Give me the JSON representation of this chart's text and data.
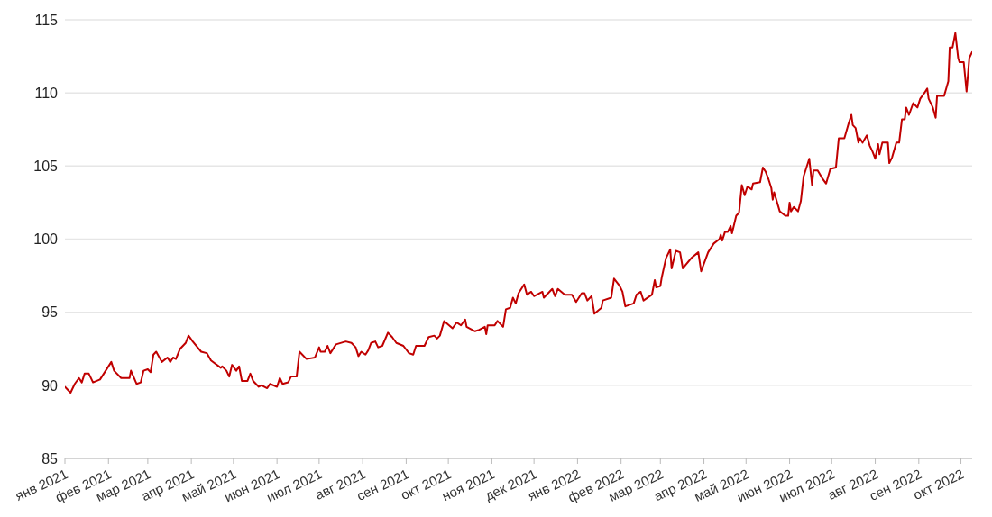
{
  "chart_data": {
    "type": "line",
    "x": [
      "2021-01-01",
      "2021-01-05",
      "2021-01-08",
      "2021-01-11",
      "2021-01-13",
      "2021-01-15",
      "2021-01-18",
      "2021-01-21",
      "2021-01-26",
      "2021-02-03",
      "2021-02-05",
      "2021-02-10",
      "2021-02-16",
      "2021-02-17",
      "2021-02-21",
      "2021-02-24",
      "2021-02-26",
      "2021-03-01",
      "2021-03-03",
      "2021-03-05",
      "2021-03-07",
      "2021-03-11",
      "2021-03-15",
      "2021-03-17",
      "2021-03-19",
      "2021-03-21",
      "2021-03-24",
      "2021-03-28",
      "2021-03-30",
      "2021-04-02",
      "2021-04-08",
      "2021-04-12",
      "2021-04-15",
      "2021-04-22",
      "2021-04-23",
      "2021-04-26",
      "2021-04-28",
      "2021-04-30",
      "2021-05-03",
      "2021-05-05",
      "2021-05-07",
      "2021-05-11",
      "2021-05-13",
      "2021-05-15",
      "2021-05-19",
      "2021-05-21",
      "2021-05-25",
      "2021-05-27",
      "2021-06-01",
      "2021-06-03",
      "2021-06-05",
      "2021-06-09",
      "2021-06-11",
      "2021-06-15",
      "2021-06-17",
      "2021-06-22",
      "2021-06-28",
      "2021-07-01",
      "2021-07-02",
      "2021-07-05",
      "2021-07-07",
      "2021-07-09",
      "2021-07-13",
      "2021-07-20",
      "2021-07-24",
      "2021-07-27",
      "2021-07-29",
      "2021-07-31",
      "2021-08-03",
      "2021-08-05",
      "2021-08-07",
      "2021-08-10",
      "2021-08-12",
      "2021-08-15",
      "2021-08-19",
      "2021-08-22",
      "2021-08-25",
      "2021-08-30",
      "2021-09-03",
      "2021-09-06",
      "2021-09-08",
      "2021-09-14",
      "2021-09-17",
      "2021-09-21",
      "2021-09-23",
      "2021-09-25",
      "2021-09-28",
      "2021-10-04",
      "2021-10-07",
      "2021-10-10",
      "2021-10-13",
      "2021-10-14",
      "2021-10-20",
      "2021-10-23",
      "2021-10-27",
      "2021-10-28",
      "2021-10-29",
      "2021-11-03",
      "2021-11-05",
      "2021-11-09",
      "2021-11-11",
      "2021-11-14",
      "2021-11-16",
      "2021-11-18",
      "2021-11-20",
      "2021-11-24",
      "2021-11-26",
      "2021-11-29",
      "2021-12-01",
      "2021-12-07",
      "2021-12-08",
      "2021-12-14",
      "2021-12-16",
      "2021-12-18",
      "2021-12-23",
      "2021-12-28",
      "2021-12-31",
      "2022-01-04",
      "2022-01-06",
      "2022-01-08",
      "2022-01-11",
      "2022-01-13",
      "2022-01-18",
      "2022-01-19",
      "2022-01-25",
      "2022-01-27",
      "2022-01-31",
      "2022-02-02",
      "2022-02-04",
      "2022-02-10",
      "2022-02-12",
      "2022-02-15",
      "2022-02-17",
      "2022-02-23",
      "2022-02-25",
      "2022-02-26",
      "2022-03-01",
      "2022-03-02",
      "2022-03-05",
      "2022-03-08",
      "2022-03-09",
      "2022-03-12",
      "2022-03-15",
      "2022-03-17",
      "2022-03-23",
      "2022-03-28",
      "2022-03-30",
      "2022-04-04",
      "2022-04-08",
      "2022-04-12",
      "2022-04-13",
      "2022-04-14",
      "2022-04-16",
      "2022-04-18",
      "2022-04-20",
      "2022-04-21",
      "2022-04-24",
      "2022-04-26",
      "2022-04-28",
      "2022-04-30",
      "2022-05-02",
      "2022-05-05",
      "2022-05-06",
      "2022-05-11",
      "2022-05-13",
      "2022-05-15",
      "2022-05-17",
      "2022-05-19",
      "2022-05-20",
      "2022-05-21",
      "2022-05-25",
      "2022-05-29",
      "2022-05-31",
      "2022-06-01",
      "2022-06-02",
      "2022-06-04",
      "2022-06-07",
      "2022-06-09",
      "2022-06-11",
      "2022-06-15",
      "2022-06-17",
      "2022-06-18",
      "2022-06-21",
      "2022-06-24",
      "2022-06-27",
      "2022-06-30",
      "2022-07-04",
      "2022-07-06",
      "2022-07-10",
      "2022-07-13",
      "2022-07-15",
      "2022-07-16",
      "2022-07-18",
      "2022-07-20",
      "2022-07-21",
      "2022-07-23",
      "2022-07-26",
      "2022-07-28",
      "2022-07-30",
      "2022-08-01",
      "2022-08-03",
      "2022-08-04",
      "2022-08-06",
      "2022-08-10",
      "2022-08-11",
      "2022-08-13",
      "2022-08-16",
      "2022-08-18",
      "2022-08-20",
      "2022-08-22",
      "2022-08-23",
      "2022-08-25",
      "2022-08-28",
      "2022-08-31",
      "2022-09-02",
      "2022-09-05",
      "2022-09-07",
      "2022-09-08",
      "2022-09-11",
      "2022-09-13",
      "2022-09-14",
      "2022-09-19",
      "2022-09-22",
      "2022-09-23",
      "2022-09-25",
      "2022-09-27",
      "2022-09-29",
      "2022-09-30",
      "2022-10-03",
      "2022-10-05",
      "2022-10-07",
      "2022-10-09"
    ],
    "series": [
      {
        "color": "#c00000",
        "values": [
          89.9,
          89.5,
          90.1,
          90.5,
          90.2,
          90.8,
          90.8,
          90.2,
          90.4,
          91.6,
          91.0,
          90.5,
          90.5,
          91.0,
          90.1,
          90.2,
          91.0,
          91.1,
          90.9,
          92.1,
          92.3,
          91.6,
          91.9,
          91.6,
          91.9,
          91.8,
          92.5,
          92.9,
          93.4,
          93.0,
          92.3,
          92.2,
          91.7,
          91.2,
          91.3,
          91.0,
          90.6,
          91.4,
          91.0,
          91.3,
          90.3,
          90.3,
          90.8,
          90.3,
          89.9,
          90.0,
          89.8,
          90.1,
          89.9,
          90.5,
          90.1,
          90.2,
          90.6,
          90.6,
          92.3,
          91.8,
          91.9,
          92.6,
          92.3,
          92.3,
          92.7,
          92.2,
          92.8,
          93.0,
          92.9,
          92.6,
          92.0,
          92.3,
          92.1,
          92.4,
          92.9,
          93.0,
          92.6,
          92.7,
          93.6,
          93.3,
          92.9,
          92.7,
          92.2,
          92.1,
          92.7,
          92.7,
          93.3,
          93.4,
          93.2,
          93.4,
          94.4,
          93.9,
          94.3,
          94.1,
          94.5,
          94.0,
          93.7,
          93.8,
          94.0,
          93.5,
          94.1,
          94.1,
          94.4,
          94.0,
          95.2,
          95.3,
          96.0,
          95.6,
          96.3,
          96.9,
          96.2,
          96.4,
          96.1,
          96.4,
          96.0,
          96.6,
          96.1,
          96.6,
          96.2,
          96.2,
          95.7,
          96.3,
          96.3,
          95.8,
          96.1,
          94.9,
          95.3,
          95.8,
          96.0,
          97.3,
          96.8,
          96.4,
          95.4,
          95.6,
          96.2,
          96.4,
          95.8,
          96.2,
          97.2,
          96.7,
          96.8,
          97.4,
          98.7,
          99.3,
          98.0,
          99.2,
          99.1,
          98.0,
          98.7,
          99.1,
          97.8,
          99.1,
          99.7,
          100.0,
          100.3,
          99.9,
          100.5,
          100.5,
          100.9,
          100.4,
          101.6,
          101.8,
          103.7,
          103.0,
          103.6,
          103.4,
          103.8,
          103.9,
          104.9,
          104.6,
          104.1,
          103.5,
          102.7,
          103.2,
          101.9,
          101.6,
          101.6,
          102.5,
          101.9,
          102.2,
          101.9,
          102.6,
          104.3,
          105.5,
          103.7,
          104.7,
          104.7,
          104.2,
          103.8,
          104.8,
          104.9,
          106.9,
          106.9,
          107.9,
          108.5,
          107.8,
          107.6,
          106.6,
          106.9,
          106.6,
          107.1,
          106.4,
          106.0,
          105.5,
          106.5,
          105.8,
          106.6,
          106.6,
          105.2,
          105.6,
          106.6,
          106.6,
          108.2,
          108.2,
          109.0,
          108.5,
          109.3,
          109.0,
          109.6,
          110.0,
          110.3,
          109.6,
          109.0,
          108.3,
          109.8,
          109.8,
          110.8,
          113.1,
          113.1,
          114.1,
          112.4,
          112.1,
          112.1,
          110.1,
          112.4,
          112.8
        ]
      }
    ],
    "xlim": [
      "2021-01-01",
      "2022-10-09"
    ],
    "xticks": [
      {
        "value": "2021-01-01",
        "label": "янв 2021"
      },
      {
        "value": "2021-02-01",
        "label": "фев 2021"
      },
      {
        "value": "2021-03-01",
        "label": "мар 2021"
      },
      {
        "value": "2021-04-01",
        "label": "апр 2021"
      },
      {
        "value": "2021-05-01",
        "label": "май 2021"
      },
      {
        "value": "2021-06-01",
        "label": "июн 2021"
      },
      {
        "value": "2021-07-01",
        "label": "июл 2021"
      },
      {
        "value": "2021-08-01",
        "label": "авг 2021"
      },
      {
        "value": "2021-09-01",
        "label": "сен 2021"
      },
      {
        "value": "2021-10-01",
        "label": "окт 2021"
      },
      {
        "value": "2021-11-01",
        "label": "ноя 2021"
      },
      {
        "value": "2021-12-01",
        "label": "дек 2021"
      },
      {
        "value": "2022-01-01",
        "label": "янв 2022"
      },
      {
        "value": "2022-02-01",
        "label": "фев 2022"
      },
      {
        "value": "2022-03-01",
        "label": "мар 2022"
      },
      {
        "value": "2022-04-01",
        "label": "апр 2022"
      },
      {
        "value": "2022-05-01",
        "label": "май 2022"
      },
      {
        "value": "2022-06-01",
        "label": "июн 2022"
      },
      {
        "value": "2022-07-01",
        "label": "июл 2022"
      },
      {
        "value": "2022-08-01",
        "label": "авг 2022"
      },
      {
        "value": "2022-09-01",
        "label": "сен 2022"
      },
      {
        "value": "2022-10-01",
        "label": "окт 2022"
      }
    ],
    "ylim": [
      85,
      115
    ],
    "yticks": [
      85,
      90,
      95,
      100,
      105,
      110,
      115
    ],
    "grid": "y",
    "legend": false,
    "marker": "none",
    "line_style": "solid"
  }
}
